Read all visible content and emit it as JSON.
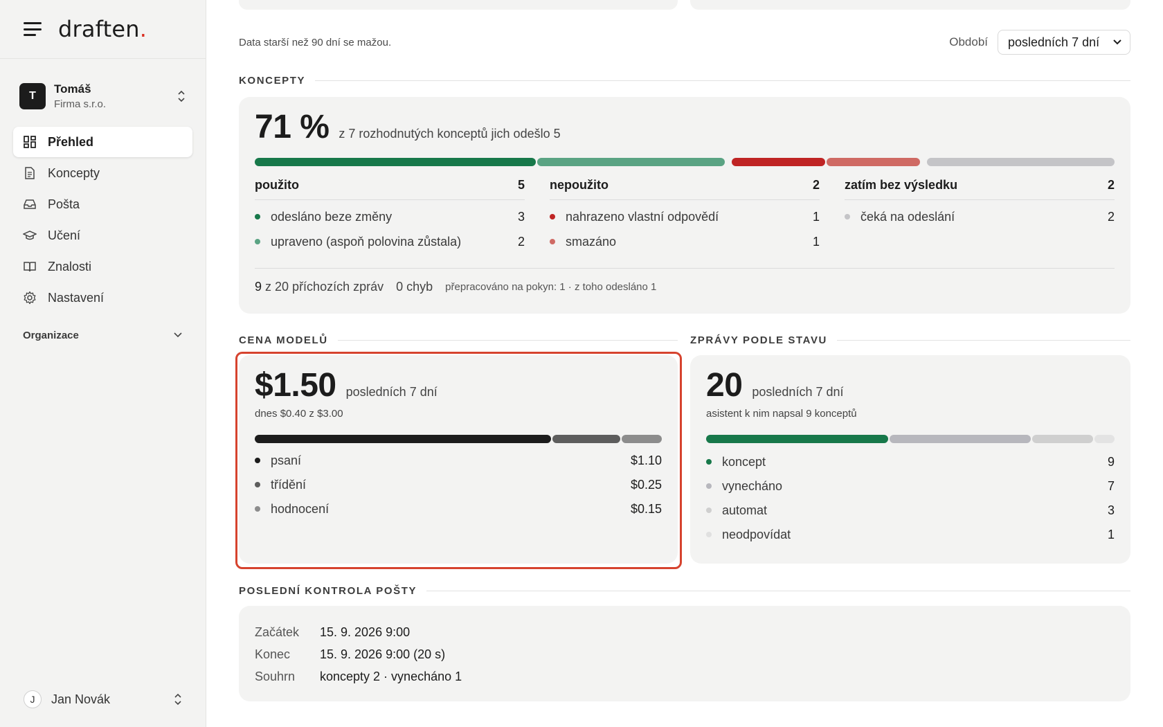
{
  "sidebar": {
    "logo_text": "draften",
    "logo_dot": ".",
    "account": {
      "initial": "T",
      "name": "Tomáš",
      "org": "Firma s.r.o."
    },
    "nav": [
      {
        "label": "Přehled",
        "icon": "dashboard-icon",
        "active": true
      },
      {
        "label": "Koncepty",
        "icon": "document-icon"
      },
      {
        "label": "Pošta",
        "icon": "inbox-icon"
      },
      {
        "label": "Učení",
        "icon": "graduation-cap-icon"
      },
      {
        "label": "Znalosti",
        "icon": "book-icon"
      },
      {
        "label": "Nastavení",
        "icon": "gear-icon"
      }
    ],
    "org_label": "Organizace",
    "user": {
      "initial": "J",
      "name": "Jan Novák"
    }
  },
  "header": {
    "note": "Data starší než 90 dní se mažou.",
    "period_label": "Období",
    "period_value": "posledních 7 dní"
  },
  "koncepty": {
    "section_title": "KONCEPTY",
    "big": "71 %",
    "sub": "z 7 rozhodnutých konceptů jich odešlo 5",
    "columns": [
      {
        "title": "použito",
        "total": "5",
        "rows": [
          {
            "label": "odesláno beze změny",
            "value": "3"
          },
          {
            "label": "upraveno (aspoň polovina zůstala)",
            "value": "2"
          }
        ]
      },
      {
        "title": "nepoužito",
        "total": "2",
        "rows": [
          {
            "label": "nahrazeno vlastní odpovědí",
            "value": "1"
          },
          {
            "label": "smazáno",
            "value": "1"
          }
        ]
      },
      {
        "title": "zatím bez výsledku",
        "total": "2",
        "rows": [
          {
            "label": "čeká na odeslání",
            "value": "2"
          }
        ]
      }
    ],
    "footer": {
      "incoming_num": "9",
      "incoming_text": "z 20 příchozích zpráv",
      "errors": "0 chyb",
      "reworked": "přepracováno na pokyn: 1 · z toho odesláno 1"
    },
    "bar": [
      {
        "name": "odesláno beze změny",
        "fraction": 0.3,
        "color": "#17784a"
      },
      {
        "name": "upraveno",
        "fraction": 0.2,
        "color": "#5aa383"
      },
      {
        "name": "nahrazeno",
        "fraction": 0.1,
        "color": "#bf2424"
      },
      {
        "name": "smazáno",
        "fraction": 0.1,
        "color": "#cf6a64"
      },
      {
        "name": "čeká",
        "fraction": 0.2,
        "color": "#c4c4c7"
      }
    ]
  },
  "cost": {
    "section_title": "CENA MODELŮ",
    "big": "$1.50",
    "period": "posledních 7 dní",
    "sub": "dnes $0.40 z $3.00",
    "rows": [
      {
        "label": "psaní",
        "value": "$1.10",
        "color": "#1c1c1c"
      },
      {
        "label": "třídění",
        "value": "$0.25",
        "color": "#5d5d5d"
      },
      {
        "label": "hodnocení",
        "value": "$0.15",
        "color": "#8c8c8c"
      }
    ],
    "bar": [
      {
        "name": "psaní",
        "value": 1.1,
        "color": "#1c1c1c"
      },
      {
        "name": "třídění",
        "value": 0.25,
        "color": "#5d5d5d"
      },
      {
        "name": "hodnocení",
        "value": 0.15,
        "color": "#8c8c8c"
      }
    ]
  },
  "status": {
    "section_title": "ZPRÁVY PODLE STAVU",
    "big": "20",
    "period": "posledních 7 dní",
    "sub": "asistent k nim napsal 9 konceptů",
    "rows": [
      {
        "label": "koncept",
        "value": "9",
        "color": "#17784a"
      },
      {
        "label": "vynecháno",
        "value": "7",
        "color": "#b7b7bd"
      },
      {
        "label": "automat",
        "value": "3",
        "color": "#cfcfcf"
      },
      {
        "label": "neodpovídat",
        "value": "1",
        "color": "#e0e0e0"
      }
    ],
    "bar": [
      {
        "name": "koncept",
        "value": 9,
        "color": "#17784a"
      },
      {
        "name": "vynecháno",
        "value": 7,
        "color": "#b7b7bd"
      },
      {
        "name": "automat",
        "value": 3,
        "color": "#cfcfcf"
      },
      {
        "name": "neodpovídat",
        "value": 1,
        "color": "#e3e3e3"
      }
    ]
  },
  "last_check": {
    "section_title": "POSLEDNÍ KONTROLA POŠTY",
    "rows": [
      {
        "key": "Začátek",
        "value": "15. 9. 2026 9:00"
      },
      {
        "key": "Konec",
        "value": "15. 9. 2026 9:00 (20 s)"
      },
      {
        "key": "Souhrn",
        "value": "koncepty 2 · vynecháno 1"
      }
    ]
  }
}
